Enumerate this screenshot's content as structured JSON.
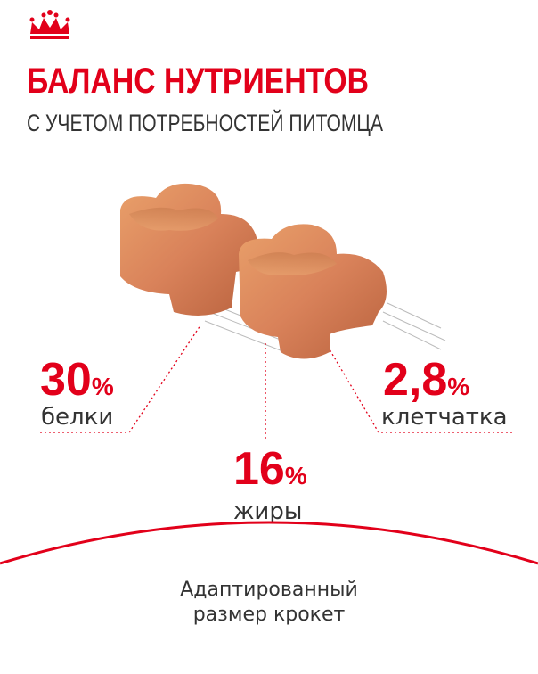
{
  "header": {
    "title": "БАЛАНС НУТРИЕНТОВ",
    "subtitle": "С УЧЕТОМ ПОТРЕБНОСТЕЙ ПИТОМЦА"
  },
  "nutrients": [
    {
      "value": "30",
      "unit": "%",
      "label": "белки"
    },
    {
      "value": "16",
      "unit": "%",
      "label": "жиры"
    },
    {
      "value": "2,8",
      "unit": "%",
      "label": "клетчатка"
    }
  ],
  "footer": {
    "lines": [
      "Адаптированный",
      "размер крокет"
    ]
  }
}
